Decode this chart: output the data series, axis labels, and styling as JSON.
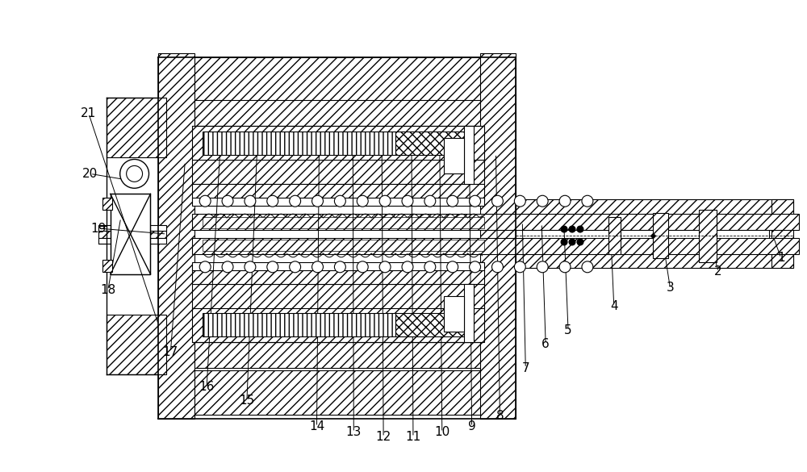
{
  "bg_color": "#ffffff",
  "line_color": "#000000",
  "figsize": [
    10.0,
    5.85
  ],
  "dpi": 100,
  "annotations": [
    [
      "1",
      960,
      293,
      970,
      265
    ],
    [
      "2",
      880,
      293,
      892,
      248
    ],
    [
      "3",
      820,
      305,
      832,
      228
    ],
    [
      "4",
      758,
      295,
      762,
      205
    ],
    [
      "5",
      700,
      300,
      705,
      175
    ],
    [
      "6",
      672,
      308,
      677,
      158
    ],
    [
      "7",
      648,
      310,
      652,
      128
    ],
    [
      "8",
      615,
      395,
      620,
      68
    ],
    [
      "9",
      582,
      400,
      585,
      55
    ],
    [
      "10",
      545,
      408,
      548,
      48
    ],
    [
      "11",
      510,
      408,
      512,
      42
    ],
    [
      "12",
      473,
      408,
      475,
      42
    ],
    [
      "13",
      437,
      408,
      438,
      48
    ],
    [
      "14",
      395,
      410,
      392,
      55
    ],
    [
      "15",
      318,
      408,
      305,
      88
    ],
    [
      "16",
      272,
      405,
      255,
      105
    ],
    [
      "17",
      228,
      385,
      210,
      148
    ],
    [
      "18",
      148,
      315,
      132,
      225
    ],
    [
      "19",
      205,
      295,
      120,
      302
    ],
    [
      "20",
      152,
      363,
      110,
      370
    ],
    [
      "21",
      195,
      182,
      108,
      445
    ]
  ]
}
